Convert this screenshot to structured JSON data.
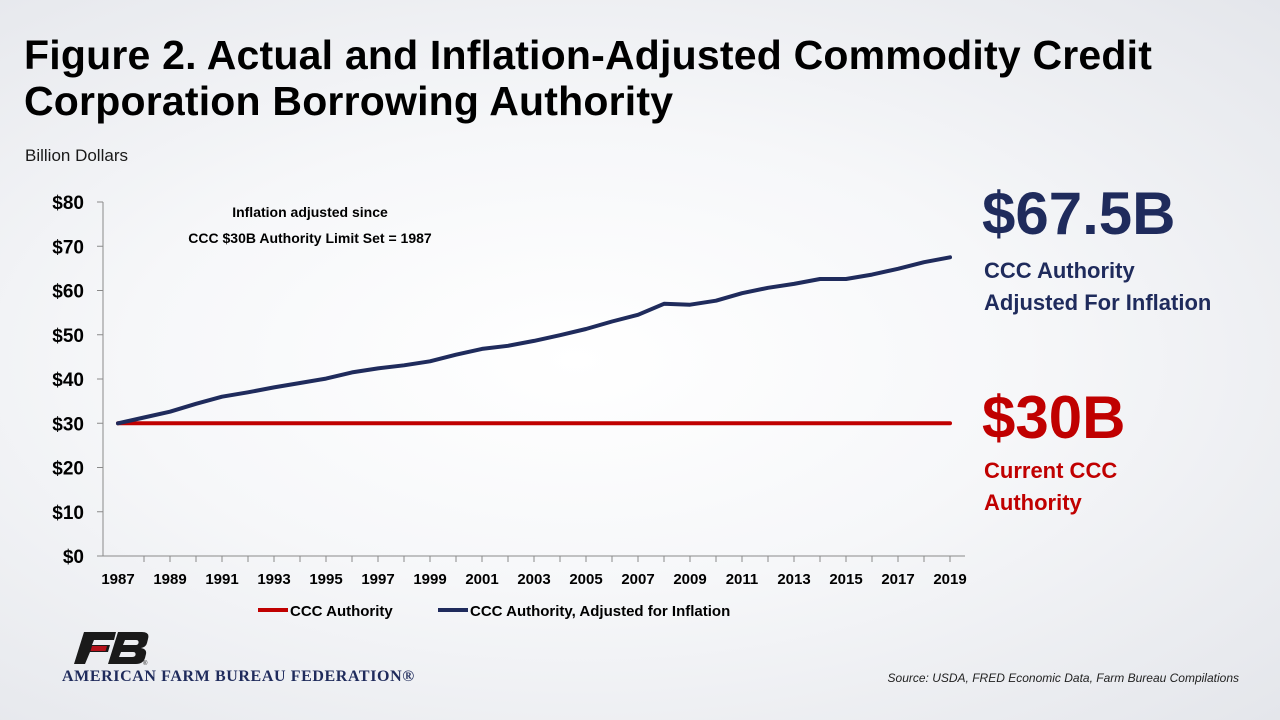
{
  "header": {
    "title": "Figure 2. Actual and Inflation-Adjusted Commodity Credit Corporation Borrowing Authority",
    "units": "Billion Dollars"
  },
  "annotation": {
    "line1": "Inflation adjusted since",
    "line2": "CCC $30B Authority Limit Set = 1987"
  },
  "callouts": {
    "adjusted": {
      "value": "$67.5B",
      "label_line1": "CCC Authority",
      "label_line2": "Adjusted For Inflation",
      "color": "#1f2b5c"
    },
    "current": {
      "value": "$30B",
      "label_line1": "Current CCC",
      "label_line2": "Authority",
      "color": "#c00000"
    }
  },
  "footer": {
    "org_name": "AMERICAN FARM BUREAU FEDERATION®",
    "source": "Source: USDA, FRED Economic Data, Farm Bureau Compilations"
  },
  "colors": {
    "navy": "#1f2b5c",
    "red": "#c00000",
    "logo_red": "#b5121b"
  },
  "chart_data": {
    "type": "line",
    "x": [
      1987,
      1988,
      1989,
      1990,
      1991,
      1992,
      1993,
      1994,
      1995,
      1996,
      1997,
      1998,
      1999,
      2000,
      2001,
      2002,
      2003,
      2004,
      2005,
      2006,
      2007,
      2008,
      2009,
      2010,
      2011,
      2012,
      2013,
      2014,
      2015,
      2016,
      2017,
      2018,
      2019
    ],
    "series": [
      {
        "name": "CCC Authority",
        "color": "#c00000",
        "values": [
          30,
          30,
          30,
          30,
          30,
          30,
          30,
          30,
          30,
          30,
          30,
          30,
          30,
          30,
          30,
          30,
          30,
          30,
          30,
          30,
          30,
          30,
          30,
          30,
          30,
          30,
          30,
          30,
          30,
          30,
          30,
          30,
          30
        ]
      },
      {
        "name": "CCC Authority, Adjusted for Inflation",
        "color": "#1f2b5c",
        "values": [
          30,
          31.3,
          32.6,
          34.4,
          36.0,
          37.0,
          38.1,
          39.1,
          40.1,
          41.5,
          42.4,
          43.1,
          44.0,
          45.5,
          46.8,
          47.5,
          48.6,
          49.9,
          51.3,
          53.0,
          54.5,
          57.0,
          56.8,
          57.7,
          59.4,
          60.6,
          61.5,
          62.6,
          62.6,
          63.6,
          64.9,
          66.4,
          67.5
        ]
      }
    ],
    "y_ticks": [
      "$0",
      "$10",
      "$20",
      "$30",
      "$40",
      "$50",
      "$60",
      "$70",
      "$80"
    ],
    "x_ticks": [
      "1987",
      "1989",
      "1991",
      "1993",
      "1995",
      "1997",
      "1999",
      "2001",
      "2003",
      "2005",
      "2007",
      "2009",
      "2011",
      "2013",
      "2015",
      "2017",
      "2019"
    ],
    "ylim": [
      0,
      80
    ],
    "xlim": [
      1987,
      2019
    ],
    "legend_position": "bottom",
    "grid": false
  }
}
